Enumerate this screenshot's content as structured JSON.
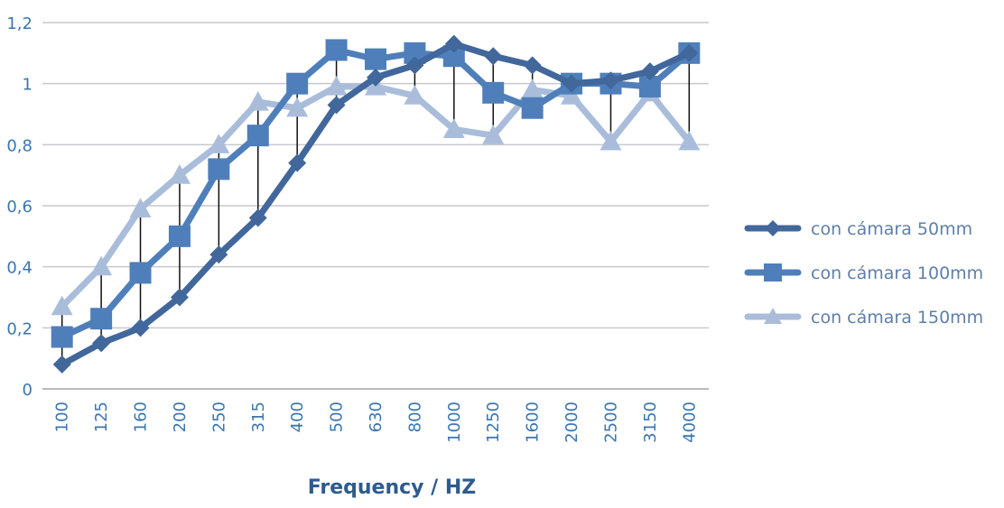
{
  "chart_data": {
    "type": "line",
    "x_label": "Frequency / HZ",
    "categories": [
      "100",
      "125",
      "160",
      "200",
      "250",
      "315",
      "400",
      "500",
      "630",
      "800",
      "1000",
      "1250",
      "1600",
      "2000",
      "2500",
      "3150",
      "4000"
    ],
    "series": [
      {
        "name": "con cámara 50mm",
        "color": "#41679b",
        "marker": "diamond",
        "values": [
          0.08,
          0.15,
          0.2,
          0.3,
          0.44,
          0.56,
          0.74,
          0.93,
          1.02,
          1.06,
          1.13,
          1.09,
          1.06,
          1.0,
          1.01,
          1.04,
          1.1
        ]
      },
      {
        "name": "con cámara 100mm",
        "color": "#4f7fba",
        "marker": "square",
        "values": [
          0.17,
          0.23,
          0.38,
          0.5,
          0.72,
          0.83,
          1.0,
          1.11,
          1.08,
          1.1,
          1.09,
          0.97,
          0.92,
          1.0,
          1.0,
          0.99,
          1.1
        ]
      },
      {
        "name": "con cámara 150mm",
        "color": "#a9bddb",
        "marker": "triangle",
        "values": [
          0.27,
          0.4,
          0.59,
          0.7,
          0.8,
          0.94,
          0.92,
          0.99,
          0.99,
          0.96,
          0.85,
          0.83,
          0.98,
          0.96,
          0.81,
          0.97,
          0.81
        ]
      }
    ],
    "ylim": [
      0,
      1.2
    ],
    "yticks": [
      0,
      {
        "value": 0.2,
        "label": "0,2"
      },
      {
        "value": 0.4,
        "label": "0,4"
      },
      {
        "value": 0.6,
        "label": "0,6"
      },
      {
        "value": 0.8,
        "label": "0,8"
      },
      1,
      {
        "value": 1.2,
        "label": "1,2"
      }
    ],
    "grid": true,
    "high_low_lines": true,
    "legend": "right"
  }
}
